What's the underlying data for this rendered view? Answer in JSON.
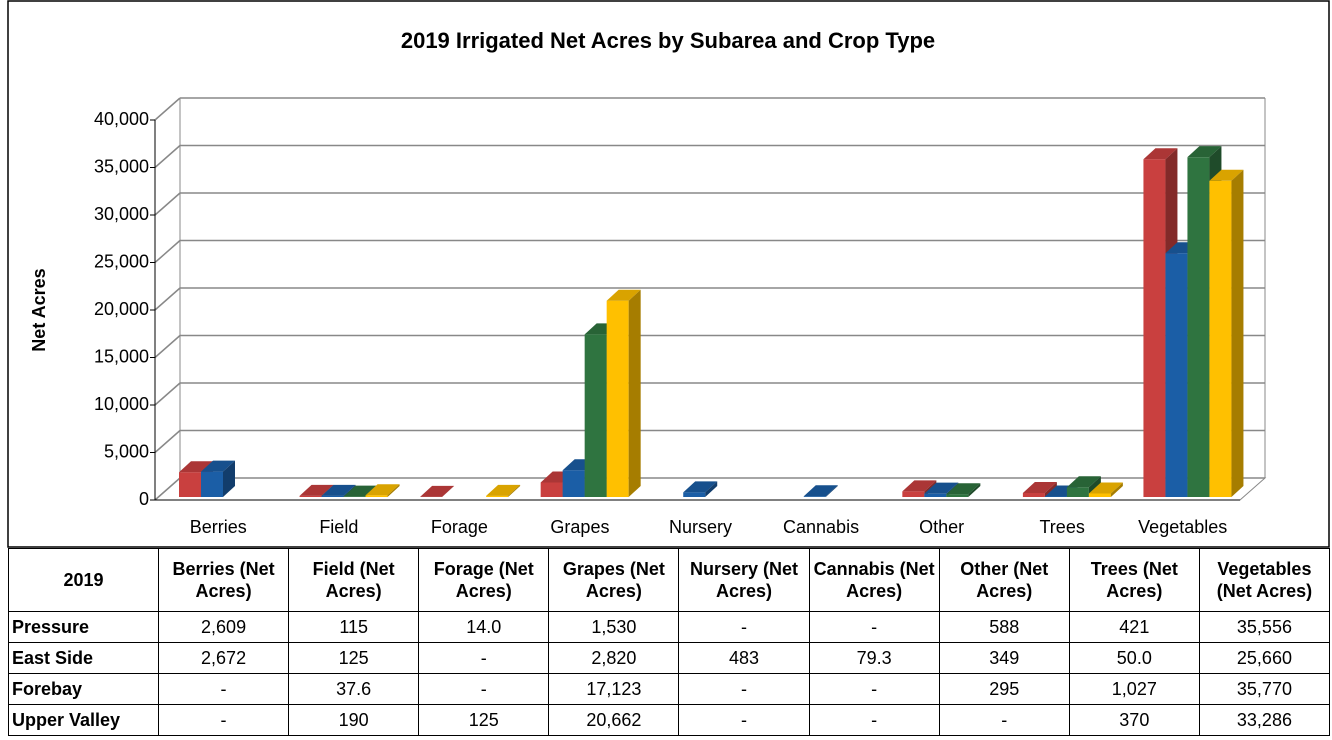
{
  "chart_data": {
    "type": "bar3d",
    "title": "2019 Irrigated Net Acres by Subarea and Crop Type",
    "ylabel": "Net Acres",
    "categories": [
      "Berries",
      "Field",
      "Forage",
      "Grapes",
      "Nursery",
      "Cannabis",
      "Other",
      "Trees",
      "Vegetables"
    ],
    "series": [
      {
        "name": "Pressure",
        "color": "#c9403f",
        "values": [
          2609,
          115,
          14,
          1530,
          null,
          null,
          588,
          421,
          35556
        ],
        "value_labels": [
          "2,609",
          "115",
          "14.0",
          "1,530",
          "-",
          "-",
          "588",
          "421",
          "35,556"
        ]
      },
      {
        "name": "East Side",
        "color": "#1b5ea6",
        "values": [
          2672,
          125,
          null,
          2820,
          483,
          79.3,
          349,
          50,
          25660
        ],
        "value_labels": [
          "2,672",
          "125",
          "-",
          "2,820",
          "483",
          "79.3",
          "349",
          "50.0",
          "25,660"
        ]
      },
      {
        "name": "Forebay",
        "color": "#2f7440",
        "values": [
          null,
          37.6,
          null,
          17123,
          null,
          null,
          295,
          1027,
          35770
        ],
        "value_labels": [
          "-",
          "37.6",
          "-",
          "17,123",
          "-",
          "-",
          "295",
          "1,027",
          "35,770"
        ]
      },
      {
        "name": "Upper Valley",
        "color": "#ffc000",
        "values": [
          null,
          190,
          125,
          20662,
          null,
          null,
          null,
          370,
          33286
        ],
        "value_labels": [
          "-",
          "190",
          "125",
          "20,662",
          "-",
          "-",
          "-",
          "370",
          "33,286"
        ]
      }
    ],
    "ylim": [
      0,
      40000
    ],
    "yticks": [
      0,
      {
        "value": 5000,
        "label": "5,000"
      },
      {
        "value": 10000,
        "label": "10,000"
      },
      {
        "value": 15000,
        "label": "15,000"
      },
      {
        "value": 20000,
        "label": "20,000"
      },
      {
        "value": 25000,
        "label": "25,000"
      },
      {
        "value": 30000,
        "label": "30,000"
      },
      {
        "value": 35000,
        "label": "35,000"
      },
      {
        "value": 40000,
        "label": "40,000"
      }
    ],
    "grid": true
  },
  "table": {
    "columns": [
      "2019",
      "Berries (Net Acres)",
      "Field (Net Acres)",
      "Forage (Net Acres)",
      "Grapes (Net Acres)",
      "Nursery (Net Acres)",
      "Cannabis (Net Acres)",
      "Other (Net Acres)",
      "Trees (Net Acres)",
      "Vegetables (Net Acres)"
    ]
  }
}
